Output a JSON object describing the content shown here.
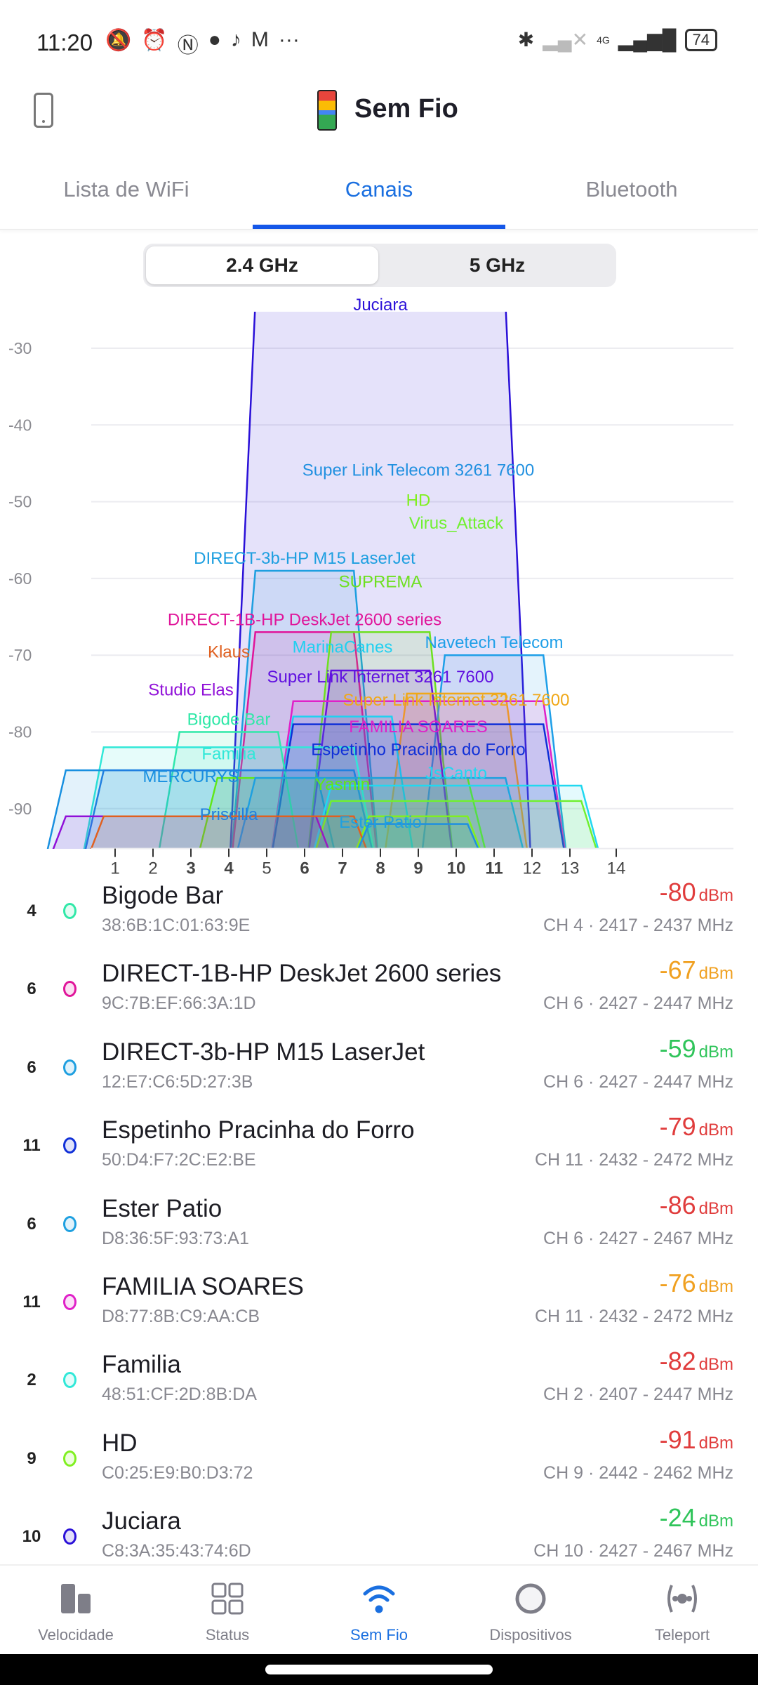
{
  "status_bar": {
    "time": "11:20",
    "battery": "74",
    "network_type": "4G",
    "more": "···"
  },
  "header": {
    "title": "Sem Fio"
  },
  "tabs": [
    {
      "label": "Lista de WiFi"
    },
    {
      "label": "Canais"
    },
    {
      "label": "Bluetooth"
    }
  ],
  "band_toggle": {
    "options": [
      "2.4 GHz",
      "5 GHz"
    ],
    "selected": "2.4 GHz"
  },
  "chart_data": {
    "type": "area",
    "xlabel": "Channel",
    "ylabel": "dBm",
    "ylim": [
      -95,
      -25
    ],
    "y_ticks": [
      -30,
      -40,
      -50,
      -60,
      -70,
      -80,
      -90
    ],
    "x_ticks": [
      {
        "ch": "1",
        "bold": false
      },
      {
        "ch": "2",
        "bold": false
      },
      {
        "ch": "3",
        "bold": true
      },
      {
        "ch": "4",
        "bold": true
      },
      {
        "ch": "5",
        "bold": false
      },
      {
        "ch": "6",
        "bold": true
      },
      {
        "ch": "7",
        "bold": true
      },
      {
        "ch": "8",
        "bold": true
      },
      {
        "ch": "9",
        "bold": true
      },
      {
        "ch": "10",
        "bold": true
      },
      {
        "ch": "11",
        "bold": true
      },
      {
        "ch": "12",
        "bold": false
      },
      {
        "ch": "13",
        "bold": false
      },
      {
        "ch": "14",
        "bold": false
      }
    ],
    "grid": true,
    "series": [
      {
        "name": "Juciara",
        "dbm": -24,
        "low_mhz": 2427,
        "high_mhz": 2467,
        "color": "#2a10d8"
      },
      {
        "name": "DIRECT-3b-HP M15 LaserJet",
        "dbm": -59,
        "low_mhz": 2427,
        "high_mhz": 2447,
        "color": "#1e9fe0"
      },
      {
        "name": "DIRECT-1B-HP DeskJet 2600 series",
        "dbm": -67,
        "low_mhz": 2427,
        "high_mhz": 2447,
        "color": "#e0159a"
      },
      {
        "name": "SUPREMA",
        "dbm": -67,
        "low_mhz": 2437,
        "high_mhz": 2457,
        "color": "#6ee020"
      },
      {
        "name": "Navetech Telecom",
        "dbm": -70,
        "low_mhz": 2452,
        "high_mhz": 2472,
        "color": "#1e9fe8"
      },
      {
        "name": "Super Link Internet 3261 7600",
        "dbm": -72,
        "low_mhz": 2437,
        "high_mhz": 2457,
        "color": "#6010e0"
      },
      {
        "name": "Super Link Internet 3261 7600",
        "dbm": -75,
        "low_mhz": 2447,
        "high_mhz": 2467,
        "color": "#f0a818"
      },
      {
        "name": "FAMILIA SOARES",
        "dbm": -76,
        "low_mhz": 2432,
        "high_mhz": 2472,
        "color": "#e020c8"
      },
      {
        "name": "MarinaCanes",
        "dbm": -78,
        "low_mhz": 2432,
        "high_mhz": 2452,
        "color": "#20d0f0"
      },
      {
        "name": "Espetinho Pracinha do Forro",
        "dbm": -79,
        "low_mhz": 2432,
        "high_mhz": 2472,
        "color": "#1030d8"
      },
      {
        "name": "Bigode Bar",
        "dbm": -80,
        "low_mhz": 2417,
        "high_mhz": 2437,
        "color": "#30e8a8"
      },
      {
        "name": "Familia",
        "dbm": -82,
        "low_mhz": 2407,
        "high_mhz": 2447,
        "color": "#30e8d8"
      },
      {
        "name": "MERCURYS",
        "dbm": -85,
        "low_mhz": 2402,
        "high_mhz": 2442,
        "color": "#1890e0"
      },
      {
        "name": "Priscilla",
        "dbm": -85,
        "low_mhz": 2407,
        "high_mhz": 2447,
        "color": "#2080e0"
      },
      {
        "name": "Yasmin",
        "dbm": -86,
        "low_mhz": 2422,
        "high_mhz": 2462,
        "color": "#60e818"
      },
      {
        "name": "Ester Patio",
        "dbm": -86,
        "low_mhz": 2427,
        "high_mhz": 2467,
        "color": "#1ea0e0"
      },
      {
        "name": "JsCanto",
        "dbm": -87,
        "low_mhz": 2437,
        "high_mhz": 2477,
        "color": "#20d8f0"
      },
      {
        "name": "Virus_Attack",
        "dbm": -89,
        "low_mhz": 2437,
        "high_mhz": 2477,
        "color": "#70f030"
      },
      {
        "name": "HD",
        "dbm": -91,
        "low_mhz": 2442,
        "high_mhz": 2462,
        "color": "#80f020"
      },
      {
        "name": "Studio Elas",
        "dbm": -91,
        "low_mhz": 2402,
        "high_mhz": 2442,
        "color": "#9010d8"
      },
      {
        "name": "Klaus",
        "dbm": -91,
        "low_mhz": 2407,
        "high_mhz": 2447,
        "color": "#e06020"
      },
      {
        "name": "Super Link Telecom 3261 7600",
        "dbm": -92,
        "low_mhz": 2442,
        "high_mhz": 2462,
        "color": "#2090e0"
      }
    ]
  },
  "networks": [
    {
      "ch": "4",
      "name": "Bigode Bar",
      "mac": "38:6B:1C:01:63:9E",
      "signal": "-80",
      "unit": "dBm",
      "freq": "CH 4 · 2417 - 2437 MHz",
      "dot": "#30e8a8",
      "sigcolor": "#e03c3c"
    },
    {
      "ch": "6",
      "name": "DIRECT-1B-HP DeskJet 2600 series",
      "mac": "9C:7B:EF:66:3A:1D",
      "signal": "-67",
      "unit": "dBm",
      "freq": "CH 6 · 2427 - 2447 MHz",
      "dot": "#e0159a",
      "sigcolor": "#f0a020"
    },
    {
      "ch": "6",
      "name": "DIRECT-3b-HP M15 LaserJet",
      "mac": "12:E7:C6:5D:27:3B",
      "signal": "-59",
      "unit": "dBm",
      "freq": "CH 6 · 2427 - 2447 MHz",
      "dot": "#1e9fe0",
      "sigcolor": "#2fc45a"
    },
    {
      "ch": "11",
      "name": "Espetinho Pracinha do Forro",
      "mac": "50:D4:F7:2C:E2:BE",
      "signal": "-79",
      "unit": "dBm",
      "freq": "CH 11 · 2432 - 2472 MHz",
      "dot": "#1030d8",
      "sigcolor": "#e03c3c"
    },
    {
      "ch": "6",
      "name": "Ester Patio",
      "mac": "D8:36:5F:93:73:A1",
      "signal": "-86",
      "unit": "dBm",
      "freq": "CH 6 · 2427 - 2467 MHz",
      "dot": "#1ea0e0",
      "sigcolor": "#e03c3c"
    },
    {
      "ch": "11",
      "name": "FAMILIA SOARES",
      "mac": "D8:77:8B:C9:AA:CB",
      "signal": "-76",
      "unit": "dBm",
      "freq": "CH 11 · 2432 - 2472 MHz",
      "dot": "#e020c8",
      "sigcolor": "#f0a020"
    },
    {
      "ch": "2",
      "name": "Familia",
      "mac": "48:51:CF:2D:8B:DA",
      "signal": "-82",
      "unit": "dBm",
      "freq": "CH 2 · 2407 - 2447 MHz",
      "dot": "#30e8d8",
      "sigcolor": "#e03c3c"
    },
    {
      "ch": "9",
      "name": "HD",
      "mac": "C0:25:E9:B0:D3:72",
      "signal": "-91",
      "unit": "dBm",
      "freq": "CH 9 · 2442 - 2462 MHz",
      "dot": "#80f020",
      "sigcolor": "#e03c3c"
    },
    {
      "ch": "10",
      "name": "Juciara",
      "mac": "C8:3A:35:43:74:6D",
      "signal": "-24",
      "unit": "dBm",
      "freq": "CH 10 · 2427 - 2467 MHz",
      "dot": "#2a10d8",
      "sigcolor": "#2fc45a"
    }
  ],
  "bottom_nav": [
    {
      "label": "Velocidade",
      "icon": "bar-chart-icon"
    },
    {
      "label": "Status",
      "icon": "grid-icon"
    },
    {
      "label": "Sem Fio",
      "icon": "wifi-icon",
      "active": true
    },
    {
      "label": "Dispositivos",
      "icon": "circle-icon"
    },
    {
      "label": "Teleport",
      "icon": "teleport-icon"
    }
  ]
}
